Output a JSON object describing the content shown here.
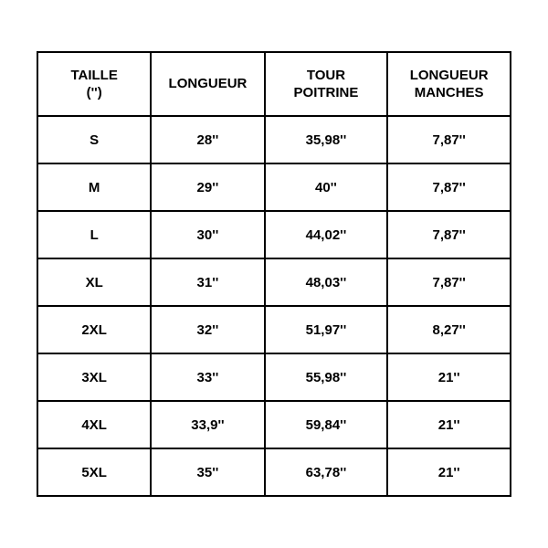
{
  "table": {
    "type": "table",
    "background_color": "#ffffff",
    "border_color": "#000000",
    "text_color": "#000000",
    "header_fontsize": 15,
    "cell_fontsize": 15,
    "font_weight": "bold",
    "columns": [
      {
        "key": "size",
        "label": "TAILLE\n('')"
      },
      {
        "key": "length",
        "label": "LONGUEUR"
      },
      {
        "key": "chest",
        "label": "TOUR\nPOITRINE"
      },
      {
        "key": "sleeve",
        "label": "LONGUEUR\nMANCHES"
      }
    ],
    "rows": [
      {
        "size": "S",
        "length": "28''",
        "chest": "35,98''",
        "sleeve": "7,87''"
      },
      {
        "size": "M",
        "length": "29''",
        "chest": "40''",
        "sleeve": "7,87''"
      },
      {
        "size": "L",
        "length": "30''",
        "chest": "44,02''",
        "sleeve": "7,87''"
      },
      {
        "size": "XL",
        "length": "31''",
        "chest": "48,03''",
        "sleeve": "7,87''"
      },
      {
        "size": "2XL",
        "length": "32''",
        "chest": "51,97''",
        "sleeve": "8,27''"
      },
      {
        "size": "3XL",
        "length": "33''",
        "chest": "55,98''",
        "sleeve": "21''"
      },
      {
        "size": "4XL",
        "length": "33,9''",
        "chest": "59,84''",
        "sleeve": "21''"
      },
      {
        "size": "5XL",
        "length": "35''",
        "chest": "63,78''",
        "sleeve": "21''"
      }
    ]
  }
}
